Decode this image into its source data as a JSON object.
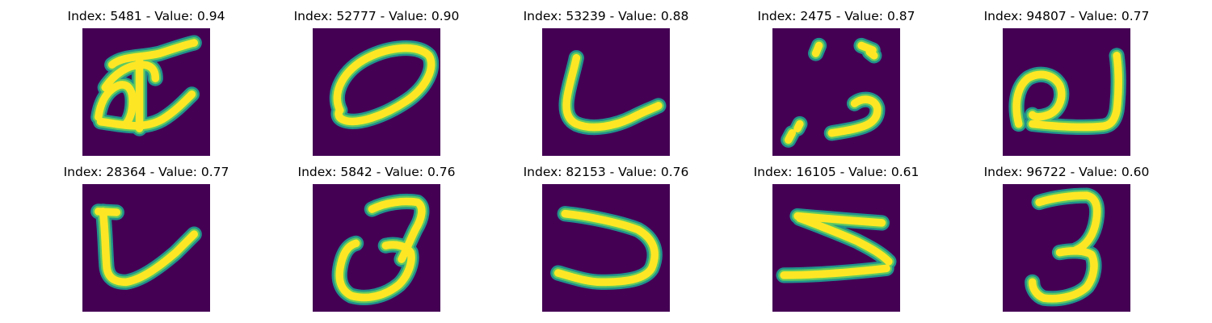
{
  "colors": {
    "background": "#440154",
    "teal": "#21918c",
    "green": "#5ec962",
    "yellow": "#fde725"
  },
  "chart_data": {
    "type": "image-grid",
    "colormap": "viridis",
    "rows": 2,
    "cols": 5,
    "panels": [
      {
        "index": 5481,
        "value": "0.94",
        "title": "Index: 5481 - Value: 0.94",
        "glyph": "ae-ligature"
      },
      {
        "index": 52777,
        "value": "0.90",
        "title": "Index: 52777 - Value: 0.90",
        "glyph": "ellipse"
      },
      {
        "index": 53239,
        "value": "0.88",
        "title": "Index: 53239 - Value: 0.88",
        "glyph": "hook"
      },
      {
        "index": 2475,
        "value": "0.87",
        "title": "Index: 2475 - Value: 0.87",
        "glyph": "dotted-stroke"
      },
      {
        "index": 94807,
        "value": "0.77",
        "title": "Index: 94807 - Value: 0.77",
        "glyph": "loop-tail"
      },
      {
        "index": 28364,
        "value": "0.77",
        "title": "Index: 28364 - Value: 0.77",
        "glyph": "check-hook"
      },
      {
        "index": 5842,
        "value": "0.76",
        "title": "Index: 5842 - Value: 0.76",
        "glyph": "three-loop"
      },
      {
        "index": 82153,
        "value": "0.76",
        "title": "Index: 82153 - Value: 0.76",
        "glyph": "reversed-c"
      },
      {
        "index": 16105,
        "value": "0.61",
        "title": "Index: 16105 - Value: 0.61",
        "glyph": "zigzag"
      },
      {
        "index": 96722,
        "value": "0.60",
        "title": "Index: 96722 - Value: 0.60",
        "glyph": "three"
      }
    ]
  }
}
